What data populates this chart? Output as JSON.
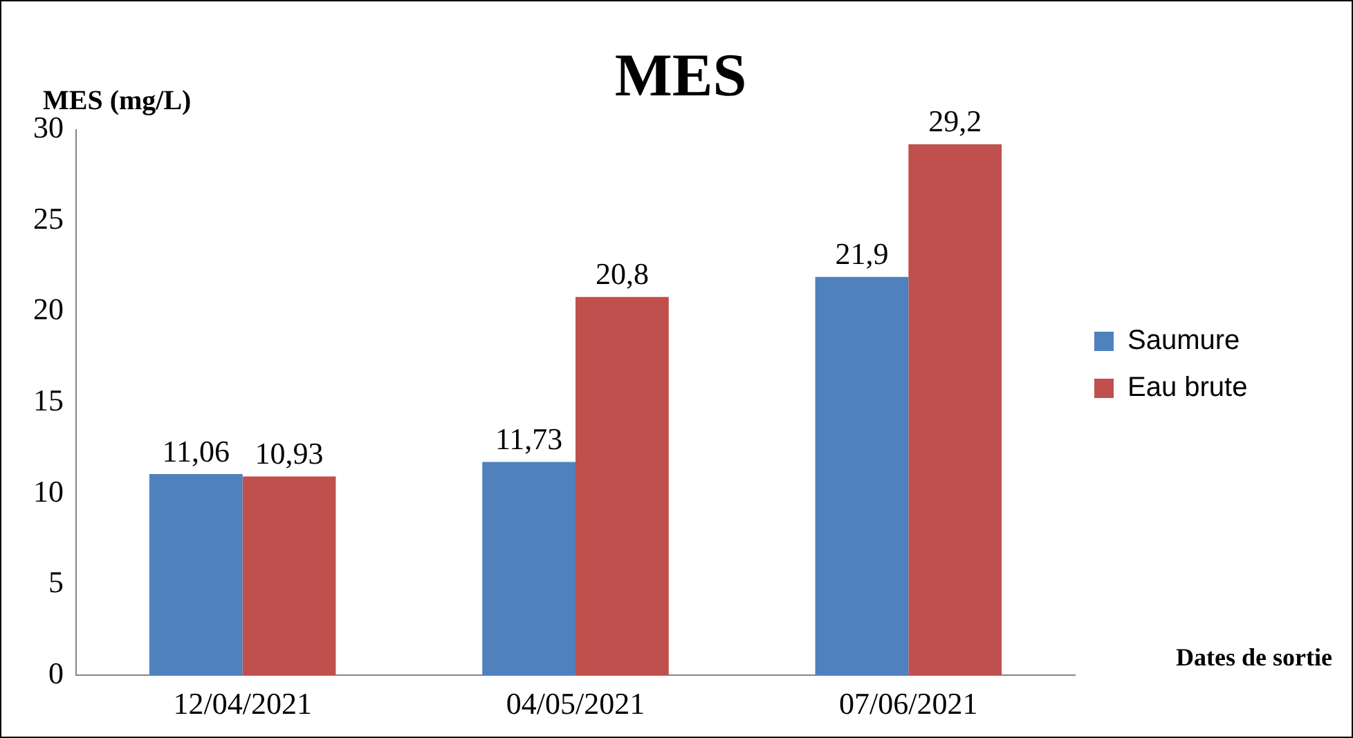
{
  "chart_data": {
    "type": "bar",
    "title": "MES",
    "ylabel": "MES (mg/L)",
    "xlabel": "Dates de sortie",
    "categories": [
      "12/04/2021",
      "04/05/2021",
      "07/06/2021"
    ],
    "series": [
      {
        "name": "Saumure",
        "color": "#4f81bd",
        "values": [
          11.06,
          11.73,
          21.9
        ],
        "value_labels": [
          "11,06",
          "11,73",
          "21,9"
        ]
      },
      {
        "name": "Eau brute",
        "color": "#c0504d",
        "values": [
          10.93,
          20.8,
          29.2
        ],
        "value_labels": [
          "10,93",
          "20,8",
          "29,2"
        ]
      }
    ],
    "ylim": [
      0,
      30
    ],
    "yticks": [
      0,
      5,
      10,
      15,
      20,
      25,
      30
    ],
    "legend": "right"
  }
}
